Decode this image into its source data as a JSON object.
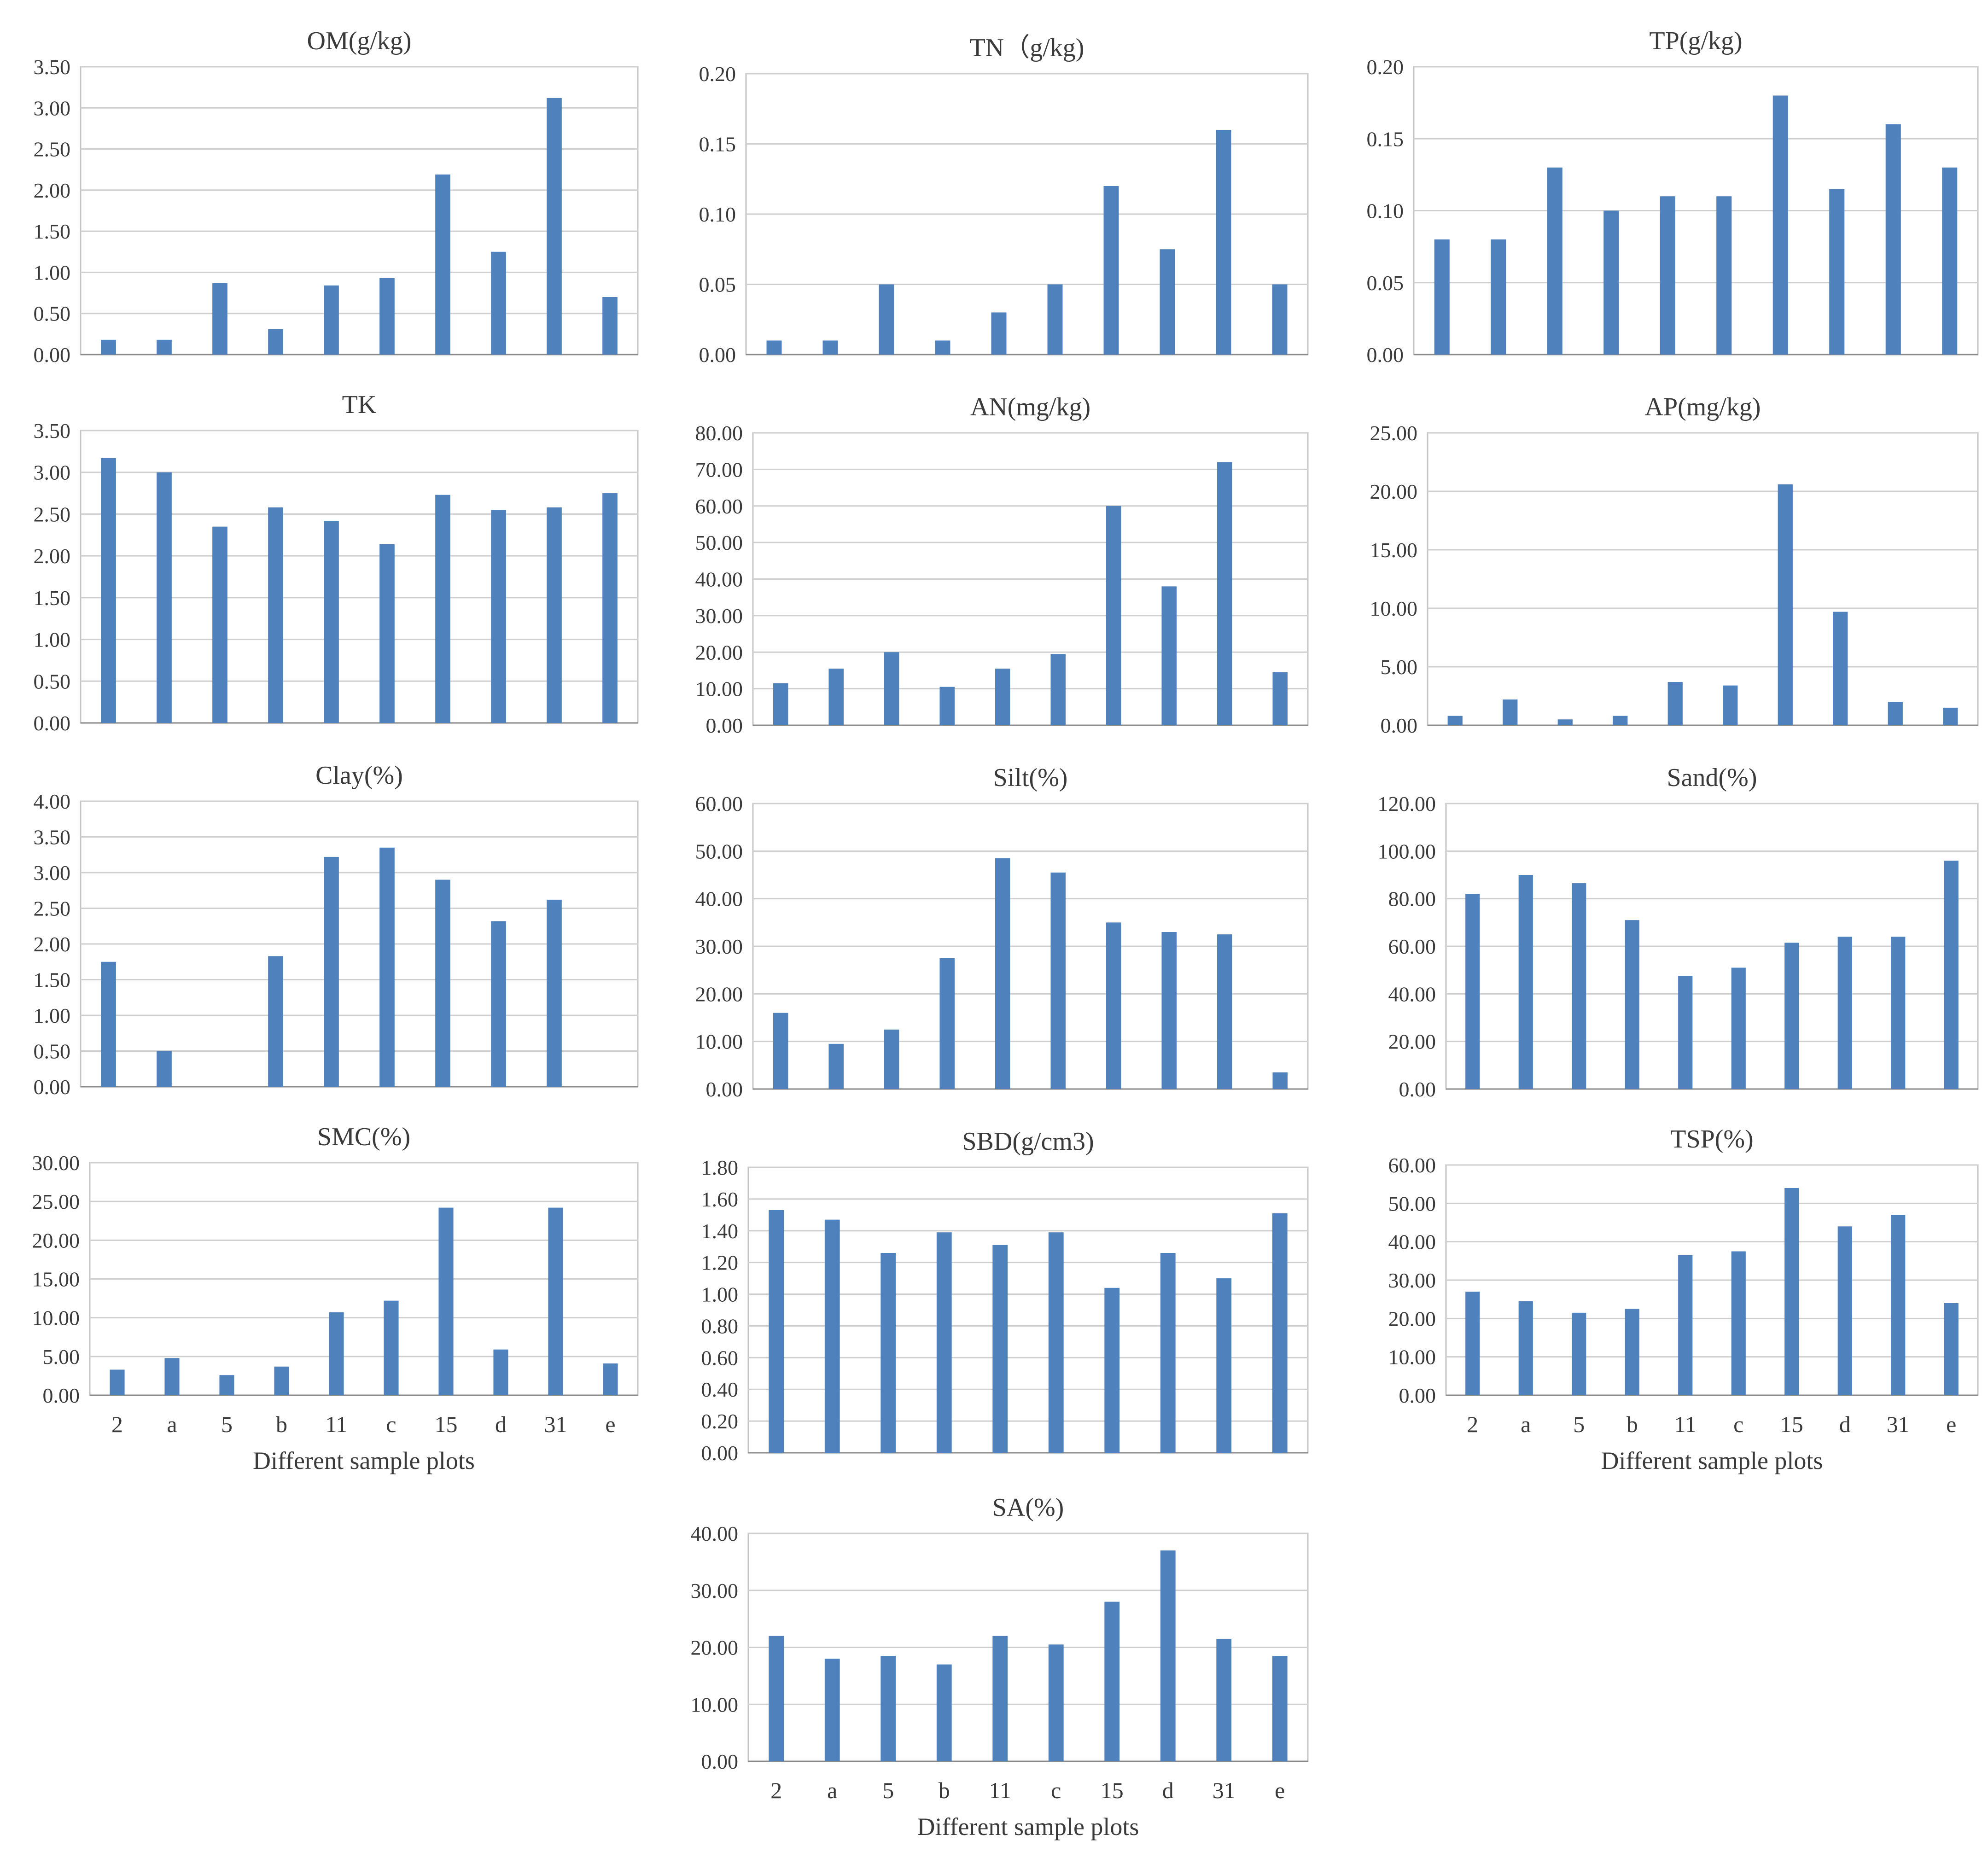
{
  "colors": {
    "bar": "#4f81bd",
    "grid": "#cfcfcf",
    "text": "#3a3a3a"
  },
  "chart_data": [
    {
      "type": "bar",
      "title": "OM(g/kg)",
      "categories": [
        "2",
        "a",
        "5",
        "b",
        "11",
        "c",
        "15",
        "d",
        "31",
        "e"
      ],
      "values": [
        0.18,
        0.18,
        0.87,
        0.31,
        0.84,
        0.93,
        2.19,
        1.25,
        3.12,
        0.7
      ],
      "ylim": [
        0,
        3.5
      ],
      "yticks": [
        "0.00",
        "0.50",
        "1.00",
        "1.50",
        "2.00",
        "2.50",
        "3.00",
        "3.50"
      ],
      "xlabel": "",
      "grid": true
    },
    {
      "type": "bar",
      "title": "TN（g/kg)",
      "categories": [
        "2",
        "a",
        "5",
        "b",
        "11",
        "c",
        "15",
        "d",
        "31",
        "e"
      ],
      "values": [
        0.01,
        0.01,
        0.05,
        0.01,
        0.03,
        0.05,
        0.12,
        0.075,
        0.16,
        0.05
      ],
      "ylim": [
        0,
        0.2
      ],
      "yticks": [
        "0.00",
        "0.05",
        "0.10",
        "0.15",
        "0.20"
      ],
      "xlabel": "",
      "grid": true
    },
    {
      "type": "bar",
      "title": "TP(g/kg)",
      "categories": [
        "2",
        "a",
        "5",
        "b",
        "11",
        "c",
        "15",
        "d",
        "31",
        "e"
      ],
      "values": [
        0.08,
        0.08,
        0.13,
        0.1,
        0.11,
        0.11,
        0.18,
        0.115,
        0.16,
        0.13
      ],
      "ylim": [
        0,
        0.2
      ],
      "yticks": [
        "0.00",
        "0.05",
        "0.10",
        "0.15",
        "0.20"
      ],
      "xlabel": "",
      "grid": true
    },
    {
      "type": "bar",
      "title": "TK",
      "categories": [
        "2",
        "a",
        "5",
        "b",
        "11",
        "c",
        "15",
        "d",
        "31",
        "e"
      ],
      "values": [
        3.17,
        3.0,
        2.35,
        2.58,
        2.42,
        2.14,
        2.73,
        2.55,
        2.58,
        2.75
      ],
      "ylim": [
        0,
        3.5
      ],
      "yticks": [
        "0.00",
        "0.50",
        "1.00",
        "1.50",
        "2.00",
        "2.50",
        "3.00",
        "3.50"
      ],
      "xlabel": "",
      "grid": true
    },
    {
      "type": "bar",
      "title": "AN(mg/kg)",
      "categories": [
        "2",
        "a",
        "5",
        "b",
        "11",
        "c",
        "15",
        "d",
        "31",
        "e"
      ],
      "values": [
        11.5,
        15.5,
        20.0,
        10.5,
        15.5,
        19.5,
        60.0,
        38.0,
        72.0,
        14.5
      ],
      "ylim": [
        0,
        80
      ],
      "yticks": [
        "0.00",
        "10.00",
        "20.00",
        "30.00",
        "40.00",
        "50.00",
        "60.00",
        "70.00",
        "80.00"
      ],
      "xlabel": "",
      "grid": true
    },
    {
      "type": "bar",
      "title": "AP(mg/kg)",
      "categories": [
        "2",
        "a",
        "5",
        "b",
        "11",
        "c",
        "15",
        "d",
        "31",
        "e"
      ],
      "values": [
        0.8,
        2.2,
        0.5,
        0.8,
        3.7,
        3.4,
        20.6,
        9.7,
        2.0,
        1.5
      ],
      "ylim": [
        0,
        25
      ],
      "yticks": [
        "0.00",
        "5.00",
        "10.00",
        "15.00",
        "20.00",
        "25.00"
      ],
      "xlabel": "",
      "grid": true
    },
    {
      "type": "bar",
      "title": "Clay(%)",
      "categories": [
        "2",
        "a",
        "5",
        "b",
        "11",
        "c",
        "15",
        "d",
        "31",
        "e"
      ],
      "values": [
        1.75,
        0.5,
        0,
        1.83,
        3.22,
        3.35,
        2.9,
        2.32,
        2.62,
        0
      ],
      "ylim": [
        0,
        4
      ],
      "yticks": [
        "0.00",
        "0.50",
        "1.00",
        "1.50",
        "2.00",
        "2.50",
        "3.00",
        "3.50",
        "4.00"
      ],
      "xlabel": "",
      "grid": true
    },
    {
      "type": "bar",
      "title": "Silt(%)",
      "categories": [
        "2",
        "a",
        "5",
        "b",
        "11",
        "c",
        "15",
        "d",
        "31",
        "e"
      ],
      "values": [
        16.0,
        9.5,
        12.5,
        27.5,
        48.5,
        45.5,
        35.0,
        33.0,
        32.5,
        3.5
      ],
      "ylim": [
        0,
        60
      ],
      "yticks": [
        "0.00",
        "10.00",
        "20.00",
        "30.00",
        "40.00",
        "50.00",
        "60.00"
      ],
      "xlabel": "",
      "grid": true
    },
    {
      "type": "bar",
      "title": "Sand(%)",
      "categories": [
        "2",
        "a",
        "5",
        "b",
        "11",
        "c",
        "15",
        "d",
        "31",
        "e"
      ],
      "values": [
        82.0,
        90.0,
        86.5,
        71.0,
        47.5,
        51.0,
        61.5,
        64.0,
        64.0,
        96.0
      ],
      "ylim": [
        0,
        120
      ],
      "yticks": [
        "0.00",
        "20.00",
        "40.00",
        "60.00",
        "80.00",
        "100.00",
        "120.00"
      ],
      "xlabel": "",
      "grid": true
    },
    {
      "type": "bar",
      "title": "SMC(%)",
      "categories": [
        "2",
        "a",
        "5",
        "b",
        "11",
        "c",
        "15",
        "d",
        "31",
        "e"
      ],
      "values": [
        3.3,
        4.8,
        2.6,
        3.7,
        10.7,
        12.2,
        24.2,
        5.9,
        24.2,
        4.1
      ],
      "ylim": [
        0,
        30
      ],
      "yticks": [
        "0.00",
        "5.00",
        "10.00",
        "15.00",
        "20.00",
        "25.00",
        "30.00"
      ],
      "xlabel": "Different sample plots",
      "grid": true
    },
    {
      "type": "bar",
      "title": "SBD(g/cm3)",
      "categories": [
        "2",
        "a",
        "5",
        "b",
        "11",
        "c",
        "15",
        "d",
        "31",
        "e"
      ],
      "values": [
        1.53,
        1.47,
        1.26,
        1.39,
        1.31,
        1.39,
        1.04,
        1.26,
        1.1,
        1.51
      ],
      "ylim": [
        0,
        1.8
      ],
      "yticks": [
        "0.00",
        "0.20",
        "0.40",
        "0.60",
        "0.80",
        "1.00",
        "1.20",
        "1.40",
        "1.60",
        "1.80"
      ],
      "xlabel": "",
      "grid": true
    },
    {
      "type": "bar",
      "title": "TSP(%)",
      "categories": [
        "2",
        "a",
        "5",
        "b",
        "11",
        "c",
        "15",
        "d",
        "31",
        "e"
      ],
      "values": [
        27.0,
        24.5,
        21.5,
        22.5,
        36.5,
        37.5,
        54.0,
        44.0,
        47.0,
        24.0
      ],
      "ylim": [
        0,
        60
      ],
      "yticks": [
        "0.00",
        "10.00",
        "20.00",
        "30.00",
        "40.00",
        "50.00",
        "60.00"
      ],
      "xlabel": "Different sample plots",
      "grid": true
    },
    {
      "type": "bar",
      "title": "SA(%)",
      "categories": [
        "2",
        "a",
        "5",
        "b",
        "11",
        "c",
        "15",
        "d",
        "31",
        "e"
      ],
      "values": [
        22.0,
        18.0,
        18.5,
        17.0,
        22.0,
        20.5,
        28.0,
        37.0,
        21.5,
        18.5
      ],
      "ylim": [
        0,
        40
      ],
      "yticks": [
        "0.00",
        "10.00",
        "20.00",
        "30.00",
        "40.00"
      ],
      "xlabel": "Different sample plots",
      "grid": true
    }
  ]
}
